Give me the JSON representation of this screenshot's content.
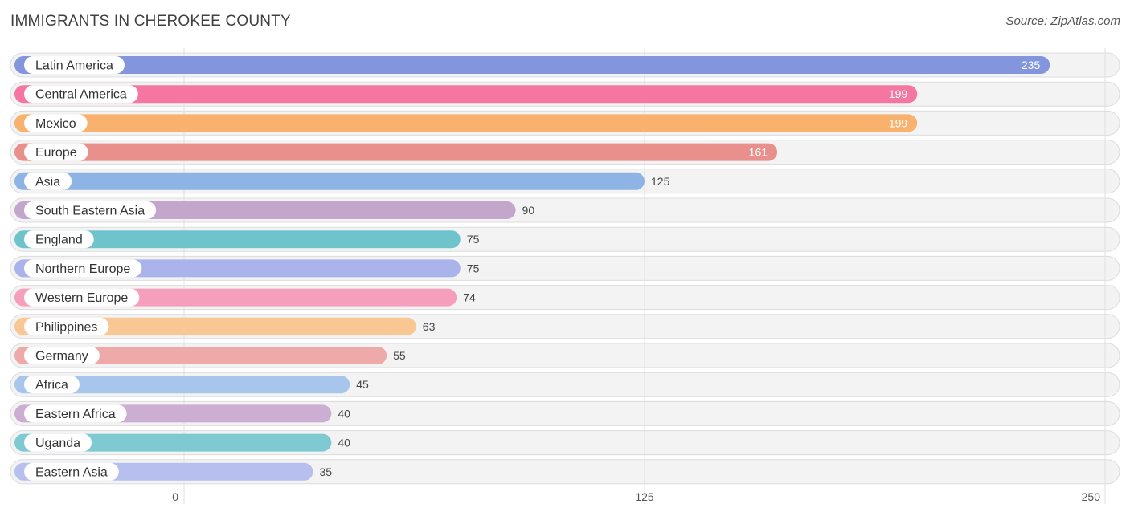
{
  "header": {
    "title": "IMMIGRANTS IN CHEROKEE COUNTY",
    "source": "Source: ZipAtlas.com"
  },
  "chart_data": {
    "type": "bar",
    "orientation": "horizontal",
    "title": "IMMIGRANTS IN CHEROKEE COUNTY",
    "categories": [
      "Latin America",
      "Central America",
      "Mexico",
      "Europe",
      "Asia",
      "South Eastern Asia",
      "England",
      "Northern Europe",
      "Western Europe",
      "Philippines",
      "Germany",
      "Africa",
      "Eastern Africa",
      "Uganda",
      "Eastern Asia"
    ],
    "values": [
      235,
      199,
      199,
      161,
      125,
      90,
      75,
      75,
      74,
      63,
      55,
      45,
      40,
      40,
      35
    ],
    "colors": [
      "#8396dd",
      "#f576a0",
      "#f8b26e",
      "#e98f8c",
      "#8db4e4",
      "#c4a6cc",
      "#6fc4cc",
      "#aab4ea",
      "#f69fbd",
      "#f9c794",
      "#eeaaa8",
      "#a8c6ec",
      "#ccaed3",
      "#7fcad2",
      "#b7bfee"
    ],
    "xlim": [
      0,
      250
    ],
    "xticks": [
      0,
      125,
      250
    ],
    "grid": true
  }
}
